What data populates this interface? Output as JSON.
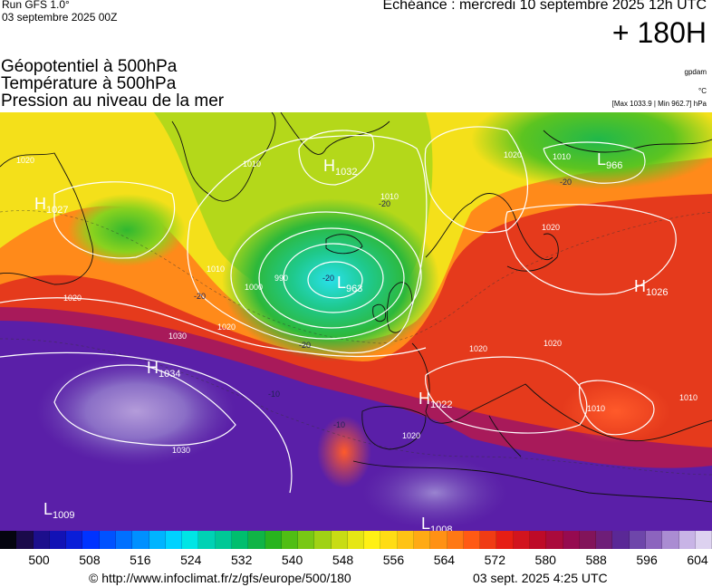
{
  "header": {
    "run": "Run GFS 1.0°",
    "run_date": "03 septembre 2025 00Z",
    "valid": "Echéance : mercredi 10 septembre 2025 12h UTC",
    "lead": "+ 180H"
  },
  "params": [
    "Géopotentiel à 500hPa",
    "Température à 500hPa",
    "Pression au niveau de la mer"
  ],
  "units": {
    "geopotential": "gpdam",
    "temperature": "°C",
    "pressure_range": "[Max 1033.9 | Min 962.7] hPa"
  },
  "pressure_centers": [
    {
      "type": "H",
      "value": "1027"
    },
    {
      "type": "H",
      "value": "1032"
    },
    {
      "type": "L",
      "value": "966"
    },
    {
      "type": "L",
      "value": "963"
    },
    {
      "type": "H",
      "value": "1026"
    },
    {
      "type": "H",
      "value": "1034"
    },
    {
      "type": "H",
      "value": "1022"
    },
    {
      "type": "L",
      "value": "1009"
    },
    {
      "type": "L",
      "value": "1008"
    }
  ],
  "isobar_labels": [
    "1020",
    "1010",
    "1020",
    "1010",
    "990",
    "1000",
    "1010",
    "1030",
    "1020",
    "1020",
    "1020",
    "1020",
    "1030",
    "1020",
    "1010",
    "1010",
    "1020",
    "1010"
  ],
  "temperature_labels": [
    "-20",
    "-20",
    "-20",
    "-20",
    "-10",
    "-10",
    "-20"
  ],
  "colors": {
    "purple": "#5a1fa8",
    "lilac": "#9c7fcb",
    "red": "#e8361a",
    "orange": "#ff8c1a",
    "yellow": "#f5e31a",
    "green": "#2bbf3a",
    "cyan": "#29d4e0",
    "isoline": "#ffffff",
    "coast": "#111111"
  },
  "legend": {
    "colors": [
      "#050510",
      "#1a0a4a",
      "#1c0f8c",
      "#1212b5",
      "#0a1ed8",
      "#0033ff",
      "#0052ff",
      "#0070ff",
      "#0090ff",
      "#00b4ff",
      "#00d2ff",
      "#00e5e5",
      "#00d2b4",
      "#00c896",
      "#00be6e",
      "#10b446",
      "#28b41e",
      "#50be14",
      "#78c814",
      "#a0d214",
      "#c8dc14",
      "#e6e614",
      "#fff014",
      "#ffdc14",
      "#ffc314",
      "#ffaa14",
      "#ff9114",
      "#ff7814",
      "#ff5a14",
      "#f03c14",
      "#e61e14",
      "#d2141e",
      "#be0a28",
      "#aa0a3c",
      "#960a50",
      "#82145a",
      "#6e1e78",
      "#5a2896",
      "#6e46aa",
      "#8c64be",
      "#aa8cd2",
      "#c8b4e6",
      "#ddd2f0"
    ],
    "ticks": [
      "500",
      "508",
      "516",
      "524",
      "532",
      "540",
      "548",
      "556",
      "564",
      "572",
      "580",
      "588",
      "596",
      "604"
    ]
  },
  "footer": {
    "url": "© http://www.infoclimat.fr/z/gfs/europe/500/180",
    "generated": "03 sept. 2025  4:25 UTC"
  }
}
